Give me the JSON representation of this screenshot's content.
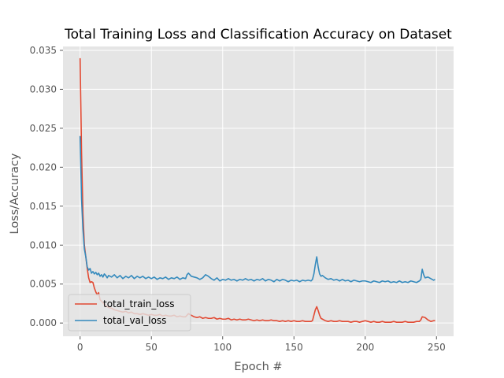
{
  "chart_data": {
    "type": "line",
    "title": "Total Training Loss and Classification Accuracy on Dataset",
    "xlabel": "Epoch #",
    "ylabel": "Loss/Accuracy",
    "xlim": [
      -12,
      262
    ],
    "ylim": [
      -0.0017,
      0.0355
    ],
    "xticks": [
      0,
      50,
      100,
      150,
      200,
      250
    ],
    "yticks": [
      0.0,
      0.005,
      0.01,
      0.015,
      0.02,
      0.025,
      0.03,
      0.035
    ],
    "ytick_labels": [
      "0.000",
      "0.005",
      "0.010",
      "0.015",
      "0.020",
      "0.025",
      "0.030",
      "0.035"
    ],
    "grid": true,
    "legend_position": "lower-left",
    "background": "#e5e5e5",
    "series": [
      {
        "name": "total_train_loss",
        "color": "#e24a33",
        "points": [
          [
            0,
            0.034
          ],
          [
            1,
            0.022
          ],
          [
            2,
            0.014
          ],
          [
            3,
            0.01
          ],
          [
            4,
            0.0085
          ],
          [
            5,
            0.007
          ],
          [
            6,
            0.0058
          ],
          [
            7,
            0.0052
          ],
          [
            8,
            0.0053
          ],
          [
            9,
            0.0052
          ],
          [
            10,
            0.0045
          ],
          [
            11,
            0.004
          ],
          [
            12,
            0.0036
          ],
          [
            13,
            0.0039
          ],
          [
            14,
            0.003
          ],
          [
            15,
            0.0028
          ],
          [
            16,
            0.0026
          ],
          [
            17,
            0.0024
          ],
          [
            18,
            0.0022
          ],
          [
            19,
            0.0021
          ],
          [
            20,
            0.002
          ],
          [
            22,
            0.0019
          ],
          [
            24,
            0.0017
          ],
          [
            26,
            0.0016
          ],
          [
            28,
            0.0015
          ],
          [
            30,
            0.0014
          ],
          [
            32,
            0.0015
          ],
          [
            34,
            0.0013
          ],
          [
            36,
            0.0014
          ],
          [
            38,
            0.0012
          ],
          [
            40,
            0.0012
          ],
          [
            42,
            0.0011
          ],
          [
            44,
            0.0012
          ],
          [
            46,
            0.0011
          ],
          [
            48,
            0.001
          ],
          [
            50,
            0.0011
          ],
          [
            52,
            0.001
          ],
          [
            54,
            0.001
          ],
          [
            56,
            0.0011
          ],
          [
            58,
            0.0009
          ],
          [
            60,
            0.001
          ],
          [
            62,
            0.0009
          ],
          [
            64,
            0.0009
          ],
          [
            66,
            0.001
          ],
          [
            68,
            0.0008
          ],
          [
            70,
            0.0009
          ],
          [
            72,
            0.0008
          ],
          [
            74,
            0.0008
          ],
          [
            76,
            0.0012
          ],
          [
            78,
            0.001
          ],
          [
            80,
            0.0008
          ],
          [
            82,
            0.0007
          ],
          [
            84,
            0.0008
          ],
          [
            86,
            0.0006
          ],
          [
            88,
            0.0007
          ],
          [
            90,
            0.0006
          ],
          [
            92,
            0.0006
          ],
          [
            94,
            0.0007
          ],
          [
            96,
            0.0005
          ],
          [
            98,
            0.0006
          ],
          [
            100,
            0.0005
          ],
          [
            102,
            0.0005
          ],
          [
            104,
            0.0006
          ],
          [
            106,
            0.0004
          ],
          [
            108,
            0.0005
          ],
          [
            110,
            0.0004
          ],
          [
            112,
            0.0005
          ],
          [
            114,
            0.0004
          ],
          [
            116,
            0.0004
          ],
          [
            118,
            0.0005
          ],
          [
            120,
            0.0004
          ],
          [
            122,
            0.0003
          ],
          [
            124,
            0.0004
          ],
          [
            126,
            0.0003
          ],
          [
            128,
            0.0004
          ],
          [
            130,
            0.0003
          ],
          [
            132,
            0.0003
          ],
          [
            134,
            0.0004
          ],
          [
            136,
            0.0003
          ],
          [
            138,
            0.0003
          ],
          [
            140,
            0.0002
          ],
          [
            142,
            0.0003
          ],
          [
            144,
            0.0002
          ],
          [
            146,
            0.0003
          ],
          [
            148,
            0.0002
          ],
          [
            150,
            0.0003
          ],
          [
            152,
            0.0002
          ],
          [
            154,
            0.0002
          ],
          [
            156,
            0.0003
          ],
          [
            158,
            0.0002
          ],
          [
            160,
            0.0002
          ],
          [
            162,
            0.0002
          ],
          [
            163,
            0.0003
          ],
          [
            164,
            0.001
          ],
          [
            165,
            0.0017
          ],
          [
            166,
            0.0021
          ],
          [
            167,
            0.0016
          ],
          [
            168,
            0.001
          ],
          [
            169,
            0.0006
          ],
          [
            170,
            0.0005
          ],
          [
            172,
            0.0003
          ],
          [
            174,
            0.0002
          ],
          [
            176,
            0.0003
          ],
          [
            178,
            0.0002
          ],
          [
            180,
            0.0002
          ],
          [
            182,
            0.0003
          ],
          [
            184,
            0.0002
          ],
          [
            186,
            0.0002
          ],
          [
            188,
            0.0002
          ],
          [
            190,
            0.0001
          ],
          [
            192,
            0.0002
          ],
          [
            194,
            0.0002
          ],
          [
            196,
            0.0001
          ],
          [
            198,
            0.0002
          ],
          [
            200,
            0.0003
          ],
          [
            202,
            0.0002
          ],
          [
            204,
            0.0001
          ],
          [
            206,
            0.0002
          ],
          [
            208,
            0.0001
          ],
          [
            210,
            0.0001
          ],
          [
            212,
            0.0002
          ],
          [
            214,
            0.0001
          ],
          [
            216,
            0.0001
          ],
          [
            218,
            0.0001
          ],
          [
            220,
            0.0002
          ],
          [
            222,
            0.0001
          ],
          [
            224,
            0.0001
          ],
          [
            226,
            0.0001
          ],
          [
            228,
            0.0002
          ],
          [
            230,
            0.0001
          ],
          [
            232,
            0.0001
          ],
          [
            234,
            0.0001
          ],
          [
            236,
            0.0002
          ],
          [
            238,
            0.0002
          ],
          [
            239,
            0.0004
          ],
          [
            240,
            0.0008
          ],
          [
            242,
            0.0007
          ],
          [
            244,
            0.0004
          ],
          [
            246,
            0.0002
          ],
          [
            248,
            0.0003
          ],
          [
            249,
            0.0003
          ]
        ]
      },
      {
        "name": "total_val_loss",
        "color": "#348abd",
        "points": [
          [
            0,
            0.024
          ],
          [
            1,
            0.016
          ],
          [
            2,
            0.012
          ],
          [
            3,
            0.0095
          ],
          [
            4,
            0.0085
          ],
          [
            5,
            0.0072
          ],
          [
            6,
            0.0068
          ],
          [
            7,
            0.007
          ],
          [
            8,
            0.0064
          ],
          [
            9,
            0.0066
          ],
          [
            10,
            0.0063
          ],
          [
            11,
            0.0065
          ],
          [
            12,
            0.0062
          ],
          [
            13,
            0.0064
          ],
          [
            14,
            0.006
          ],
          [
            15,
            0.0062
          ],
          [
            16,
            0.0059
          ],
          [
            17,
            0.0063
          ],
          [
            18,
            0.0061
          ],
          [
            19,
            0.0058
          ],
          [
            20,
            0.0061
          ],
          [
            22,
            0.0059
          ],
          [
            24,
            0.0062
          ],
          [
            26,
            0.0058
          ],
          [
            28,
            0.0061
          ],
          [
            30,
            0.0057
          ],
          [
            32,
            0.006
          ],
          [
            34,
            0.0058
          ],
          [
            36,
            0.0061
          ],
          [
            38,
            0.0057
          ],
          [
            40,
            0.006
          ],
          [
            42,
            0.0058
          ],
          [
            44,
            0.006
          ],
          [
            46,
            0.0057
          ],
          [
            48,
            0.0059
          ],
          [
            50,
            0.0057
          ],
          [
            52,
            0.0059
          ],
          [
            54,
            0.0056
          ],
          [
            56,
            0.0058
          ],
          [
            58,
            0.0057
          ],
          [
            60,
            0.0059
          ],
          [
            62,
            0.0056
          ],
          [
            64,
            0.0058
          ],
          [
            66,
            0.0057
          ],
          [
            68,
            0.0059
          ],
          [
            70,
            0.0056
          ],
          [
            72,
            0.0058
          ],
          [
            74,
            0.0057
          ],
          [
            75,
            0.0062
          ],
          [
            76,
            0.0064
          ],
          [
            77,
            0.0062
          ],
          [
            78,
            0.006
          ],
          [
            80,
            0.0059
          ],
          [
            82,
            0.0058
          ],
          [
            84,
            0.0056
          ],
          [
            86,
            0.0058
          ],
          [
            88,
            0.0062
          ],
          [
            90,
            0.006
          ],
          [
            92,
            0.0057
          ],
          [
            94,
            0.0055
          ],
          [
            96,
            0.0058
          ],
          [
            98,
            0.0054
          ],
          [
            100,
            0.0056
          ],
          [
            102,
            0.0055
          ],
          [
            104,
            0.0057
          ],
          [
            106,
            0.0055
          ],
          [
            108,
            0.0056
          ],
          [
            110,
            0.0054
          ],
          [
            112,
            0.0056
          ],
          [
            114,
            0.0055
          ],
          [
            116,
            0.0057
          ],
          [
            118,
            0.0055
          ],
          [
            120,
            0.0056
          ],
          [
            122,
            0.0054
          ],
          [
            124,
            0.0056
          ],
          [
            126,
            0.0055
          ],
          [
            128,
            0.0057
          ],
          [
            130,
            0.0054
          ],
          [
            132,
            0.0056
          ],
          [
            134,
            0.0055
          ],
          [
            136,
            0.0053
          ],
          [
            138,
            0.0056
          ],
          [
            140,
            0.0054
          ],
          [
            142,
            0.0056
          ],
          [
            144,
            0.0055
          ],
          [
            146,
            0.0053
          ],
          [
            148,
            0.0055
          ],
          [
            150,
            0.0054
          ],
          [
            152,
            0.0055
          ],
          [
            154,
            0.0053
          ],
          [
            156,
            0.0055
          ],
          [
            158,
            0.0054
          ],
          [
            160,
            0.0055
          ],
          [
            162,
            0.0054
          ],
          [
            163,
            0.0056
          ],
          [
            164,
            0.0063
          ],
          [
            165,
            0.0075
          ],
          [
            166,
            0.0085
          ],
          [
            167,
            0.0072
          ],
          [
            168,
            0.0063
          ],
          [
            169,
            0.006
          ],
          [
            170,
            0.0061
          ],
          [
            172,
            0.0058
          ],
          [
            174,
            0.0056
          ],
          [
            176,
            0.0057
          ],
          [
            178,
            0.0055
          ],
          [
            180,
            0.0056
          ],
          [
            182,
            0.0054
          ],
          [
            184,
            0.0056
          ],
          [
            186,
            0.0054
          ],
          [
            188,
            0.0055
          ],
          [
            190,
            0.0053
          ],
          [
            192,
            0.0055
          ],
          [
            194,
            0.0054
          ],
          [
            196,
            0.0053
          ],
          [
            198,
            0.0054
          ],
          [
            200,
            0.0054
          ],
          [
            202,
            0.0053
          ],
          [
            204,
            0.0052
          ],
          [
            206,
            0.0054
          ],
          [
            208,
            0.0053
          ],
          [
            210,
            0.0052
          ],
          [
            212,
            0.0054
          ],
          [
            214,
            0.0053
          ],
          [
            216,
            0.0054
          ],
          [
            218,
            0.0052
          ],
          [
            220,
            0.0053
          ],
          [
            222,
            0.0052
          ],
          [
            224,
            0.0054
          ],
          [
            226,
            0.0052
          ],
          [
            228,
            0.0053
          ],
          [
            230,
            0.0052
          ],
          [
            232,
            0.0054
          ],
          [
            234,
            0.0053
          ],
          [
            236,
            0.0052
          ],
          [
            238,
            0.0054
          ],
          [
            239,
            0.0056
          ],
          [
            240,
            0.0069
          ],
          [
            241,
            0.0062
          ],
          [
            242,
            0.0058
          ],
          [
            244,
            0.0059
          ],
          [
            246,
            0.0057
          ],
          [
            248,
            0.0055
          ],
          [
            249,
            0.0056
          ]
        ]
      }
    ]
  }
}
